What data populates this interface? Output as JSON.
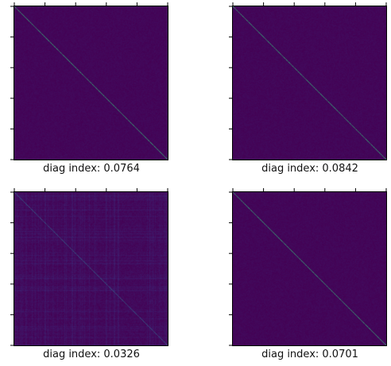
{
  "chart_data": [
    {
      "type": "heatmap",
      "xlabel": "diag index: 0.0764",
      "diag_index": 0.0764,
      "pattern": "strong-diagonal",
      "noise": 0.25,
      "stripes": 0.0
    },
    {
      "type": "heatmap",
      "xlabel": "diag index: 0.0842",
      "diag_index": 0.0842,
      "pattern": "strong-diagonal",
      "noise": 0.25,
      "stripes": 0.0
    },
    {
      "type": "heatmap",
      "xlabel": "diag index: 0.0326",
      "diag_index": 0.0326,
      "pattern": "weak-diagonal-striped",
      "noise": 0.35,
      "stripes": 0.6
    },
    {
      "type": "heatmap",
      "xlabel": "diag index: 0.0701",
      "diag_index": 0.0701,
      "pattern": "strong-diagonal",
      "noise": 0.25,
      "stripes": 0.0
    }
  ],
  "colors": {
    "background": "#440154",
    "noise": "#3b2a7a",
    "diagonal_strong": "#35b779",
    "diagonal_weak": "#31688e"
  }
}
